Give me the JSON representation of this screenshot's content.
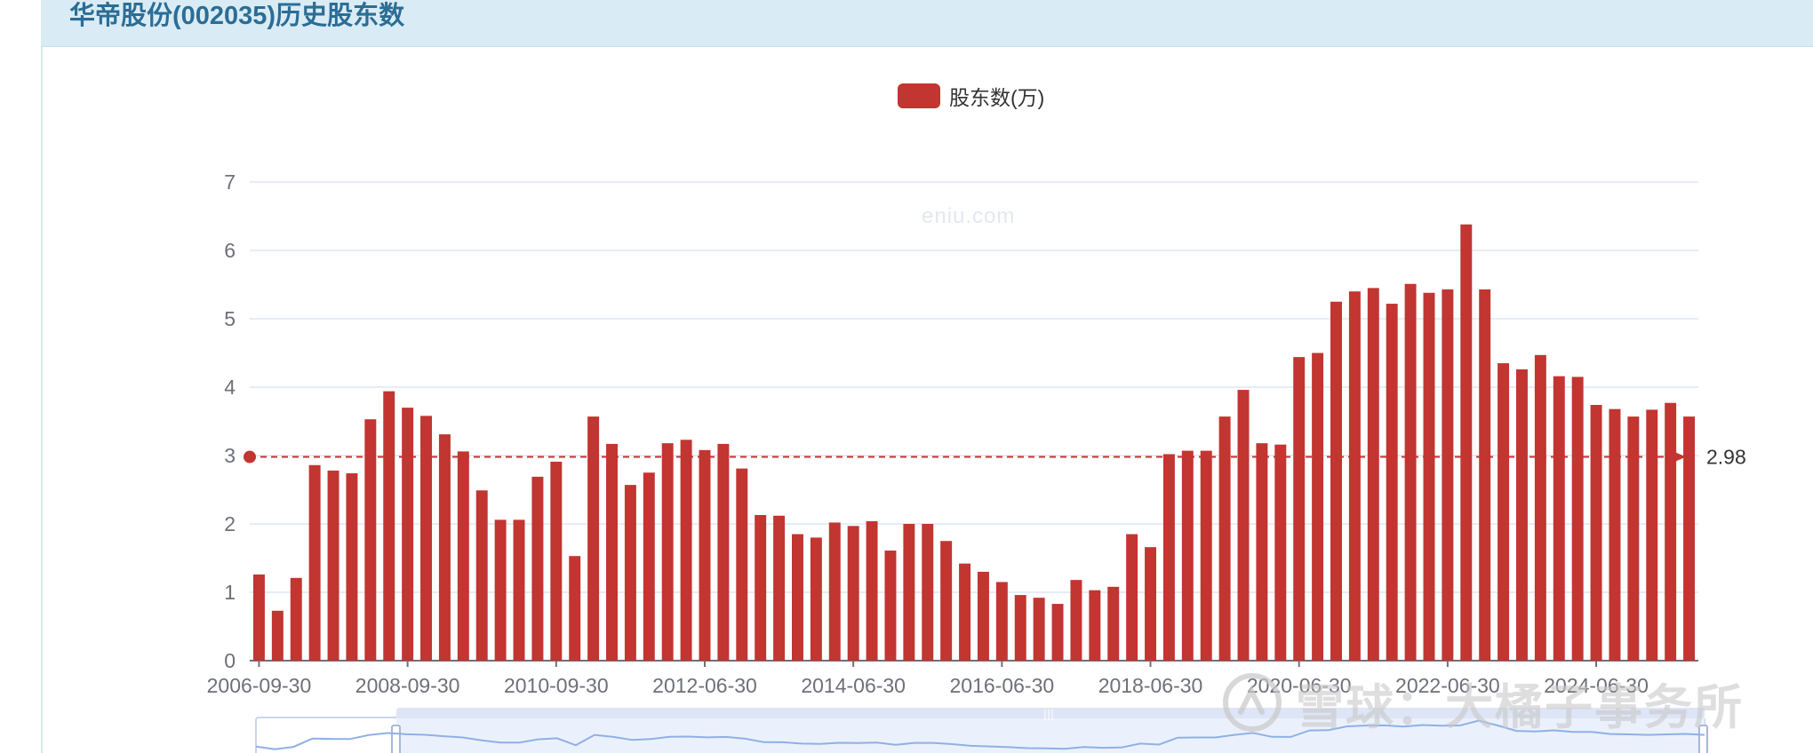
{
  "header": {
    "title": "华帝股份(002035)历史股东数"
  },
  "legend": {
    "label": "股东数(万)"
  },
  "watermark": {
    "text": "eniu.com"
  },
  "brand": {
    "text": "雪球：大橘子事务所"
  },
  "colors": {
    "bar": "#c23531",
    "grid": "#dfe6f7",
    "axis": "#6e7079",
    "header_bg": "#d9ecf6",
    "zoom_fill": "#e8eefc"
  },
  "chart_data": {
    "type": "bar",
    "title": "华帝股份(002035)历史股东数",
    "series": [
      {
        "name": "股东数(万)",
        "values": [
          1.26,
          0.73,
          1.21,
          2.86,
          2.78,
          2.74,
          3.53,
          3.94,
          3.7,
          3.58,
          3.31,
          3.06,
          2.49,
          2.06,
          2.06,
          2.69,
          2.91,
          1.53,
          3.57,
          3.17,
          2.57,
          2.75,
          3.18,
          3.23,
          3.08,
          3.17,
          2.81,
          2.13,
          2.12,
          1.85,
          1.8,
          2.02,
          1.97,
          2.04,
          1.61,
          2.0,
          2.0,
          1.75,
          1.42,
          1.3,
          1.15,
          0.96,
          0.92,
          0.83,
          1.18,
          1.03,
          1.08,
          1.85,
          1.66,
          3.02,
          3.07,
          3.07,
          3.57,
          3.96,
          3.18,
          3.16,
          4.44,
          4.5,
          5.25,
          5.4,
          5.45,
          5.22,
          5.51,
          5.38,
          5.43,
          6.38,
          5.43,
          4.35,
          4.26,
          4.47,
          4.16,
          4.15,
          3.74,
          3.68,
          3.57,
          3.67,
          3.77,
          3.57
        ]
      }
    ],
    "x_start": "2006-09-30",
    "x_step": "quarter",
    "x_tick_labels": [
      "2006-09-30",
      "2008-09-30",
      "2010-09-30",
      "2012-06-30",
      "2014-06-30",
      "2016-06-30",
      "2018-06-30",
      "2020-06-30",
      "2022-06-30",
      "2024-06-30"
    ],
    "x_tick_indices": [
      0,
      8,
      16,
      24,
      32,
      40,
      48,
      56,
      64,
      72
    ],
    "y_ticks": [
      0,
      1,
      2,
      3,
      4,
      5,
      6,
      7
    ],
    "ylim": [
      0,
      7
    ],
    "average": 2.98,
    "grid": true,
    "legend_position": "top-center"
  }
}
